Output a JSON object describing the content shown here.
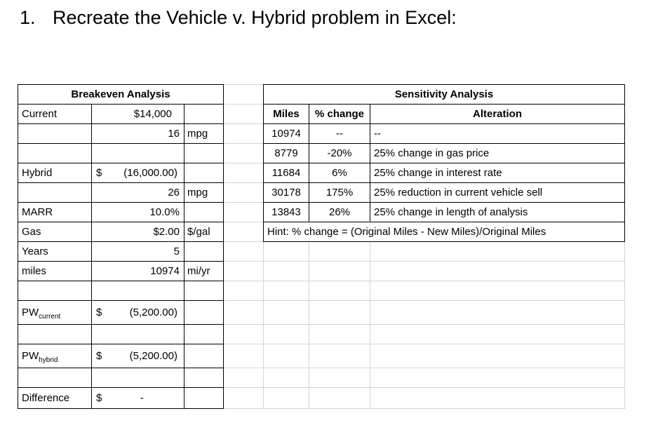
{
  "page": {
    "number": "1.",
    "title": "Recreate the Vehicle v. Hybrid problem in Excel:"
  },
  "breakeven": {
    "title": "Breakeven Analysis",
    "rows": {
      "current": {
        "label": "Current",
        "value": "$14,000"
      },
      "current_mpg": {
        "value": "16",
        "unit": "mpg"
      },
      "hybrid": {
        "label": "Hybrid",
        "cur": "$",
        "amt": "(16,000.00)"
      },
      "hybrid_mpg": {
        "value": "26",
        "unit": "mpg"
      },
      "marr": {
        "label": "MARR",
        "value": "10.0%"
      },
      "gas": {
        "label": "Gas",
        "value": "$2.00",
        "unit": "$/gal"
      },
      "years": {
        "label": "Years",
        "value": "5"
      },
      "miles": {
        "label": "miles",
        "value": "10974",
        "unit": "mi/yr"
      },
      "pw_current": {
        "label_base": "PW",
        "label_sub": "current",
        "cur": "$",
        "amt": "(5,200.00)"
      },
      "pw_hybrid": {
        "label_base": "PW",
        "label_sub": "hybrid",
        "cur": "$",
        "amt": "(5,200.00)"
      },
      "difference": {
        "label": "Difference",
        "cur": "$",
        "amt": "-"
      }
    }
  },
  "sensitivity": {
    "title": "Sensitivity Analysis",
    "columns": {
      "miles": "Miles",
      "change": "% change",
      "alteration": "Alteration"
    },
    "rows": [
      {
        "miles": "10974",
        "change": "--",
        "alteration": "--"
      },
      {
        "miles": "8779",
        "change": "-20%",
        "alteration": "25% change in gas price"
      },
      {
        "miles": "11684",
        "change": "6%",
        "alteration": "25% change in interest rate"
      },
      {
        "miles": "30178",
        "change": "175%",
        "alteration": "25% reduction in current vehicle sell"
      },
      {
        "miles": "13843",
        "change": "26%",
        "alteration": "25% change in length of analysis"
      }
    ],
    "hint": "Hint: % change = (Original Miles - New Miles)/Original Miles"
  }
}
